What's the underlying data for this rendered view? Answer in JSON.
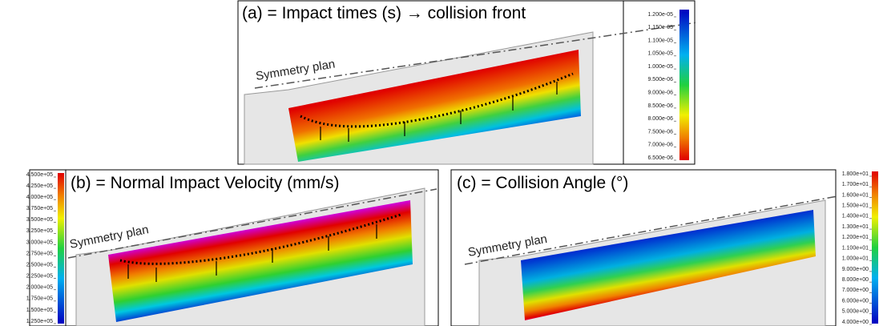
{
  "panels": [
    {
      "title": "(a) = Impact times (s) → collision front",
      "symmetry_label": "Symmetry plan",
      "colorbar": [
        "1.200e-05",
        "1.150e-05",
        "1.100e-05",
        "1.050e-05",
        "1.000e-05",
        "9.500e-06",
        "9.000e-06",
        "8.500e-06",
        "8.000e-06",
        "7.500e-06",
        "7.000e-06",
        "6.500e-06"
      ]
    },
    {
      "title": "(b) = Normal Impact Velocity (mm/s)",
      "symmetry_label": "Symmetry plan",
      "colorbar": [
        "4.500e+05",
        "4.250e+05",
        "4.000e+05",
        "3.750e+05",
        "3.500e+05",
        "3.250e+05",
        "3.000e+05",
        "2.750e+05",
        "2.500e+05",
        "2.250e+05",
        "2.000e+05",
        "1.750e+05",
        "1.500e+05",
        "1.250e+05"
      ]
    },
    {
      "title": "(c) = Collision Angle (°)",
      "symmetry_label": "Symmetry plan",
      "colorbar": [
        "1.800e+01",
        "1.700e+01",
        "1.600e+01",
        "1.500e+01",
        "1.400e+01",
        "1.300e+01",
        "1.200e+01",
        "1.100e+01",
        "1.000e+01",
        "9.000e+00",
        "8.000e+00",
        "7.000e+00",
        "6.000e+00",
        "5.000e+00",
        "4.000e+00"
      ]
    }
  ]
}
